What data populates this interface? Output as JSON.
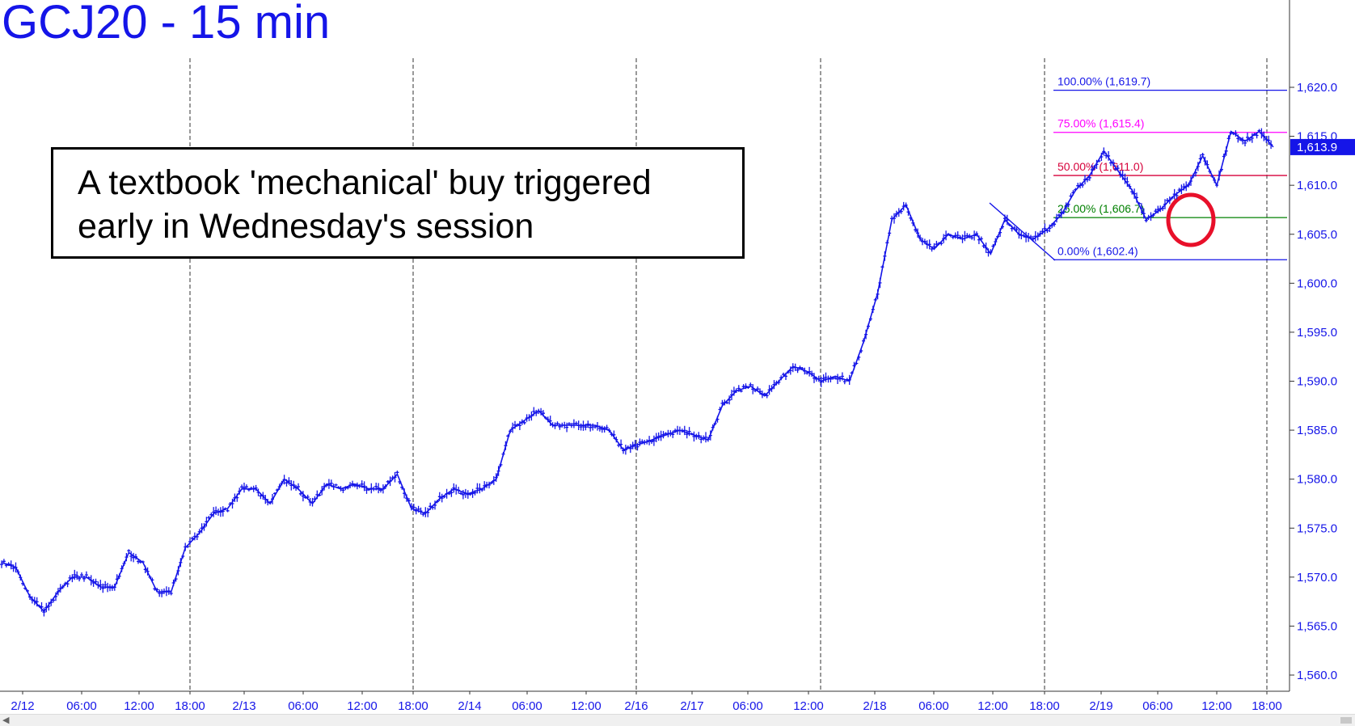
{
  "title": "GCJ20 - 15 min",
  "annotation": "A textbook 'mechanical' buy triggered\nearly in Wednesday's session",
  "colors": {
    "price": "#1515e8",
    "fib_100": "#1515e8",
    "fib_75": "#ff00ff",
    "fib_50": "#d6003a",
    "fib_25": "#008000",
    "fib_0": "#1515e8",
    "circle": "#e8102a",
    "last_price_tag": "#1515e8"
  },
  "chart_data": {
    "type": "line",
    "title": "GCJ20 - 15 min",
    "xlabel": "",
    "ylabel": "",
    "ylim": [
      1558.0,
      1623.0
    ],
    "y_axis_position": "right",
    "grid": "vertical dashed session separators",
    "y_ticks": [
      "1,560.0",
      "1,565.0",
      "1,570.0",
      "1,575.0",
      "1,580.0",
      "1,585.0",
      "1,590.0",
      "1,595.0",
      "1,600.0",
      "1,605.0",
      "1,610.0",
      "1,615.0",
      "1,620.0"
    ],
    "y_tick_values": [
      1560,
      1565,
      1570,
      1575,
      1580,
      1585,
      1590,
      1595,
      1600,
      1605,
      1610,
      1615,
      1620
    ],
    "x_ticks": [
      "2/12",
      "06:00",
      "12:00",
      "18:00",
      "2/13",
      "06:00",
      "12:00",
      "18:00",
      "2/14",
      "06:00",
      "12:00",
      "2/16",
      "2/17",
      "06:00",
      "12:00",
      "2/18",
      "06:00",
      "12:00",
      "18:00",
      "2/19",
      "06:00",
      "12:00",
      "18:00"
    ],
    "last_price": "1,613.9",
    "series": [
      {
        "values": [
          1571.5,
          1571,
          1568,
          1566.5,
          1568.5,
          1570,
          1570,
          1569,
          1569,
          1572.5,
          1571.5,
          1568.5,
          1568.5,
          1573,
          1574.5,
          1576.5,
          1577,
          1579,
          1579,
          1577.5,
          1580,
          1579,
          1577.5,
          1579.5,
          1579,
          1579.5,
          1579,
          1579,
          1580.5,
          1577,
          1576.5,
          1578,
          1579,
          1578.5,
          1579,
          1580,
          1585,
          1586,
          1587,
          1585.5,
          1585.5,
          1585.5,
          1585.5,
          1585,
          1583,
          1583.5,
          1584,
          1584.5,
          1585,
          1584.5,
          1584,
          1587.5,
          1589,
          1589.5,
          1588.5,
          1590,
          1591.5,
          1591,
          1590,
          1590.5,
          1590,
          1594,
          1599,
          1606.5,
          1608,
          1604.5,
          1603.5,
          1605,
          1604.5,
          1605,
          1603,
          1606.5,
          1605,
          1604.5,
          1605.5,
          1607,
          1609.5,
          1611,
          1613.5,
          1611.5,
          1609.5,
          1606.5,
          1607.5,
          1609,
          1610,
          1613,
          1610,
          1615.5,
          1614.5,
          1615.5,
          1613.9
        ]
      }
    ],
    "fib_levels": [
      {
        "label": "100.00% (1,619.7)",
        "value": 1619.7
      },
      {
        "label": "75.00% (1,615.4)",
        "value": 1615.4
      },
      {
        "label": "50.00% (1,611.0)",
        "value": 1611.0
      },
      {
        "label": "25.00% (1,606.7)",
        "value": 1606.7
      },
      {
        "label": "0.00% (1,602.4)",
        "value": 1602.4
      }
    ],
    "annotations": [
      "A textbook 'mechanical' buy triggered early in Wednesday's session"
    ]
  }
}
